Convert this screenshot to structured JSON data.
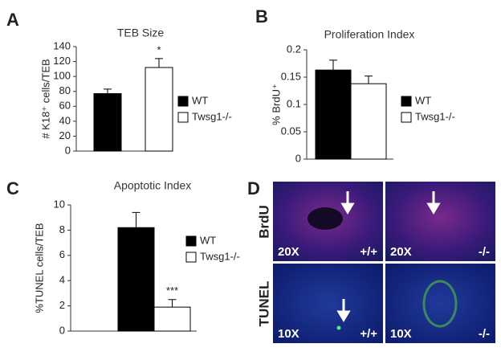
{
  "chart_data": [
    {
      "type": "bar",
      "letter": "A",
      "title": "TEB Size",
      "y_label": "# K18⁺ cells/TEB",
      "series": [
        {
          "name": "WT",
          "color": "#000000",
          "values": [
            77
          ],
          "errors": [
            6
          ]
        },
        {
          "name": "Twsg1-/-",
          "color": "#ffffff",
          "values": [
            112
          ],
          "errors": [
            12
          ]
        }
      ],
      "annotations": [
        {
          "text": "*",
          "series": 1
        }
      ],
      "ylim": [
        0,
        140
      ],
      "yticks": [
        0,
        20,
        40,
        60,
        80,
        100,
        120,
        140
      ]
    },
    {
      "type": "bar",
      "letter": "B",
      "title": "Proliferation Index",
      "y_label": "% BrdU⁺",
      "series": [
        {
          "name": "WT",
          "color": "#000000",
          "values": [
            0.163
          ],
          "errors": [
            0.018
          ]
        },
        {
          "name": "Twsg1-/-",
          "color": "#ffffff",
          "values": [
            0.138
          ],
          "errors": [
            0.014
          ]
        }
      ],
      "ylim": [
        0,
        0.2
      ],
      "yticks": [
        0,
        0.05,
        0.1,
        0.15,
        0.2
      ]
    },
    {
      "type": "bar",
      "letter": "C",
      "title": "Apoptotic Index",
      "y_label": "%TUNEL cells/TEB",
      "series": [
        {
          "name": "WT",
          "color": "#000000",
          "values": [
            8.2
          ],
          "errors": [
            1.2
          ]
        },
        {
          "name": "Twsg1-/-",
          "color": "#ffffff",
          "values": [
            1.9
          ],
          "errors": [
            0.6
          ]
        }
      ],
      "annotations": [
        {
          "text": "***",
          "series": 1
        }
      ],
      "ylim": [
        0,
        10
      ],
      "yticks": [
        0,
        2,
        4,
        6,
        8,
        10
      ]
    }
  ],
  "panel_d": {
    "letter": "D",
    "row_labels": [
      "BrdU",
      "TUNEL"
    ],
    "images": [
      {
        "magnification": "20X",
        "genotype": "+/+"
      },
      {
        "magnification": "20X",
        "genotype": "-/-"
      },
      {
        "magnification": "10X",
        "genotype": "+/+"
      },
      {
        "magnification": "10X",
        "genotype": "-/-"
      }
    ]
  }
}
